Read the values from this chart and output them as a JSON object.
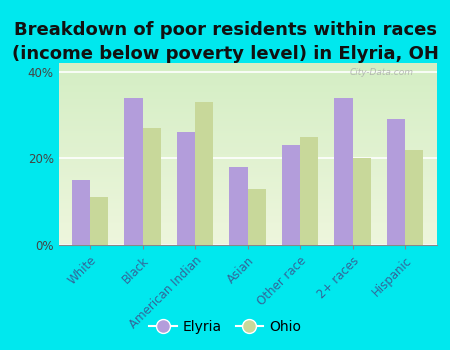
{
  "title": "Breakdown of poor residents within races\n(income below poverty level) in Elyria, OH",
  "categories": [
    "White",
    "Black",
    "American Indian",
    "Asian",
    "Other race",
    "2+ races",
    "Hispanic"
  ],
  "elyria_values": [
    15,
    34,
    26,
    18,
    23,
    34,
    29
  ],
  "ohio_values": [
    11,
    27,
    33,
    13,
    25,
    20,
    22
  ],
  "elyria_color": "#b39ddb",
  "ohio_color": "#c8d89a",
  "background_color": "#00e8ee",
  "ylim": [
    0,
    42
  ],
  "yticks": [
    0,
    20,
    40
  ],
  "ytick_labels": [
    "0%",
    "20%",
    "40%"
  ],
  "bar_width": 0.35,
  "title_fontsize": 13,
  "tick_fontsize": 8.5,
  "legend_fontsize": 10,
  "watermark": "City-Data.com"
}
